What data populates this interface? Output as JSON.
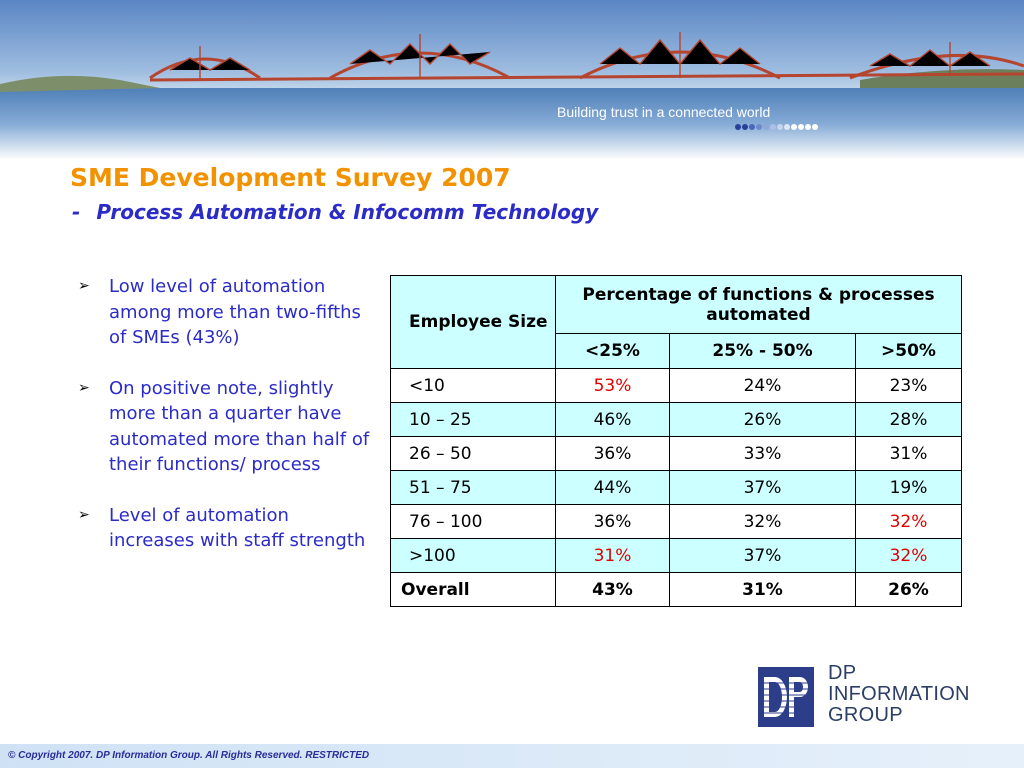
{
  "banner": {
    "tagline": "Building trust in a connected world",
    "dot_colors": [
      "#2a3f9a",
      "#2a3f9a",
      "#4a66b8",
      "#6e89cc",
      "#8ea6d8",
      "#adc0e3",
      "#c7d6ee",
      "#dde7f5",
      "#ffffff",
      "#ffffff",
      "#ffffff",
      "#ffffff"
    ]
  },
  "title": "SME Development Survey 2007",
  "subtitle": {
    "dash": "-",
    "text": "Process Automation & Infocomm Technology"
  },
  "bullets": [
    "Low level of automation among more than two-fifths of SMEs (43%)",
    "On positive note, slightly more than a quarter have automated more than half of their functions/ process",
    "Level of automation increases with staff strength"
  ],
  "bullet_marker": "➢",
  "table": {
    "header_employee": "Employee Size",
    "header_group": "Percentage of functions & processes automated",
    "sub_headers": [
      "<25%",
      "25% - 50%",
      ">50%"
    ],
    "rows": [
      {
        "label": "<10",
        "values": [
          "53%",
          "24%",
          "23%"
        ]
      },
      {
        "label": "10 – 25",
        "values": [
          "46%",
          "26%",
          "28%"
        ]
      },
      {
        "label": "26 – 50",
        "values": [
          "36%",
          "33%",
          "31%"
        ]
      },
      {
        "label": "51 – 75",
        "values": [
          "44%",
          "37%",
          "19%"
        ]
      },
      {
        "label": "76 – 100",
        "values": [
          "36%",
          "32%",
          "32%"
        ]
      },
      {
        "label": ">100",
        "values": [
          "31%",
          "37%",
          "32%"
        ]
      }
    ],
    "overall": {
      "label": "Overall",
      "values": [
        "43%",
        "31%",
        "26%"
      ]
    },
    "highlight_color": "#e00000",
    "header_bg": "#ccffff"
  },
  "logo": {
    "mark": "DP",
    "line1": "DP",
    "line2": "INFORMATION",
    "line3": "GROUP"
  },
  "footer": "© Copyright 2007. DP Information Group. All Rights Reserved. RESTRICTED",
  "colors": {
    "title": "#f39200",
    "subtitle": "#2b2bc8",
    "bridge": "#b5452e"
  }
}
